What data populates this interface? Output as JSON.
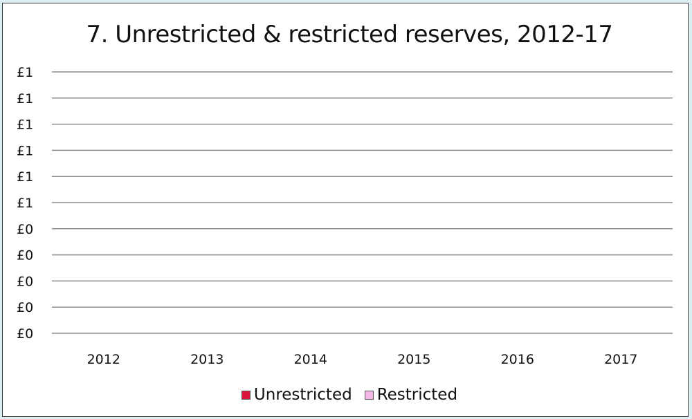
{
  "chart_data": {
    "type": "bar",
    "title": "7. Unrestricted & restricted reserves, 2012-17",
    "xlabel": "",
    "ylabel": "",
    "categories": [
      "2012",
      "2013",
      "2014",
      "2015",
      "2016",
      "2017"
    ],
    "y_tick_labels": [
      "£1",
      "£1",
      "£1",
      "£1",
      "£1",
      "£1",
      "£0",
      "£0",
      "£0",
      "£0",
      "£0"
    ],
    "ylim": [
      0,
      1
    ],
    "grid": true,
    "legend_position": "bottom",
    "series": [
      {
        "name": "Unrestricted",
        "color": "#dc143c",
        "values": [
          0,
          0,
          0,
          0,
          0,
          0
        ]
      },
      {
        "name": "Restricted",
        "color": "#f3b8e6",
        "values": [
          0,
          0,
          0,
          0,
          0,
          0
        ]
      }
    ]
  },
  "colors": {
    "page_background": "#ddeef3",
    "gridline": "#8c8c8c",
    "text": "#111111"
  }
}
